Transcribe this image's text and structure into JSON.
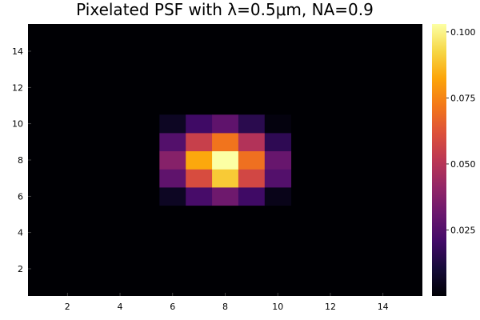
{
  "chart_data": {
    "type": "heatmap",
    "title": "Pixelated PSF with λ=0.5μm, NA=0.9",
    "xlabel": "",
    "ylabel": "",
    "xlim": [
      0.5,
      15.5
    ],
    "ylim": [
      0.5,
      15.5
    ],
    "x_ticks": [
      2,
      4,
      6,
      8,
      10,
      12,
      14
    ],
    "y_ticks": [
      2,
      4,
      6,
      8,
      10,
      12,
      14
    ],
    "colormap": "inferno",
    "colorbar": {
      "range": [
        0,
        0.103
      ],
      "ticks": [
        0.025,
        0.05,
        0.075,
        0.1
      ],
      "tick_labels": [
        "0.025",
        "0.050",
        "0.075",
        "0.100"
      ]
    },
    "rows_from_y": [
      6,
      7,
      8,
      9,
      10
    ],
    "cols_from_x": [
      6,
      7,
      8,
      9,
      10
    ],
    "values": [
      [
        0.006,
        0.022,
        0.032,
        0.02,
        0.004
      ],
      [
        0.028,
        0.06,
        0.09,
        0.058,
        0.025
      ],
      [
        0.038,
        0.083,
        0.103,
        0.07,
        0.03
      ],
      [
        0.025,
        0.055,
        0.071,
        0.049,
        0.016
      ],
      [
        0.006,
        0.02,
        0.028,
        0.015,
        0.002
      ]
    ],
    "background_value": 0.0
  }
}
